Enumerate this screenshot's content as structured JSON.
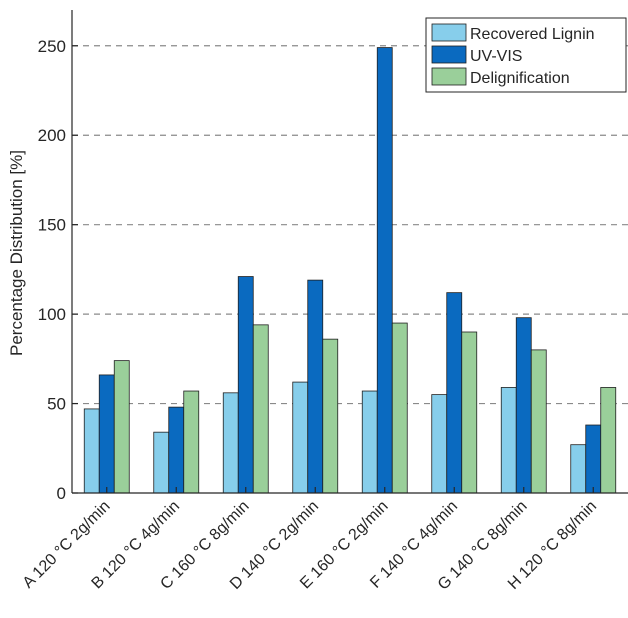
{
  "chart_data": {
    "type": "bar",
    "title": "",
    "xlabel": "",
    "ylabel": "Percentage Distribution [%]",
    "ylim": [
      0,
      270
    ],
    "yticks": [
      0,
      50,
      100,
      150,
      200,
      250
    ],
    "grid": "horizontal-dashed",
    "legend_position": "top-right",
    "categories": [
      "A 120 °C 2g/min",
      "B 120 °C 4g/min",
      "C 160 °C 8g/min",
      "D 140 °C 2g/min",
      "E 160 °C 2g/min",
      "F 140 °C 4g/min",
      "G 140 °C 8g/min",
      "H 120 °C 8g/min"
    ],
    "series": [
      {
        "name": "Recovered Lignin",
        "color": "#87CEEB",
        "values": [
          47,
          34,
          56,
          62,
          57,
          55,
          59,
          27
        ]
      },
      {
        "name": "UV-VIS",
        "color": "#0A6AC0",
        "values": [
          66,
          48,
          121,
          119,
          249,
          112,
          98,
          38
        ]
      },
      {
        "name": "Delignification",
        "color": "#9ACF9A",
        "values": [
          74,
          57,
          94,
          86,
          95,
          90,
          80,
          59
        ]
      }
    ]
  }
}
